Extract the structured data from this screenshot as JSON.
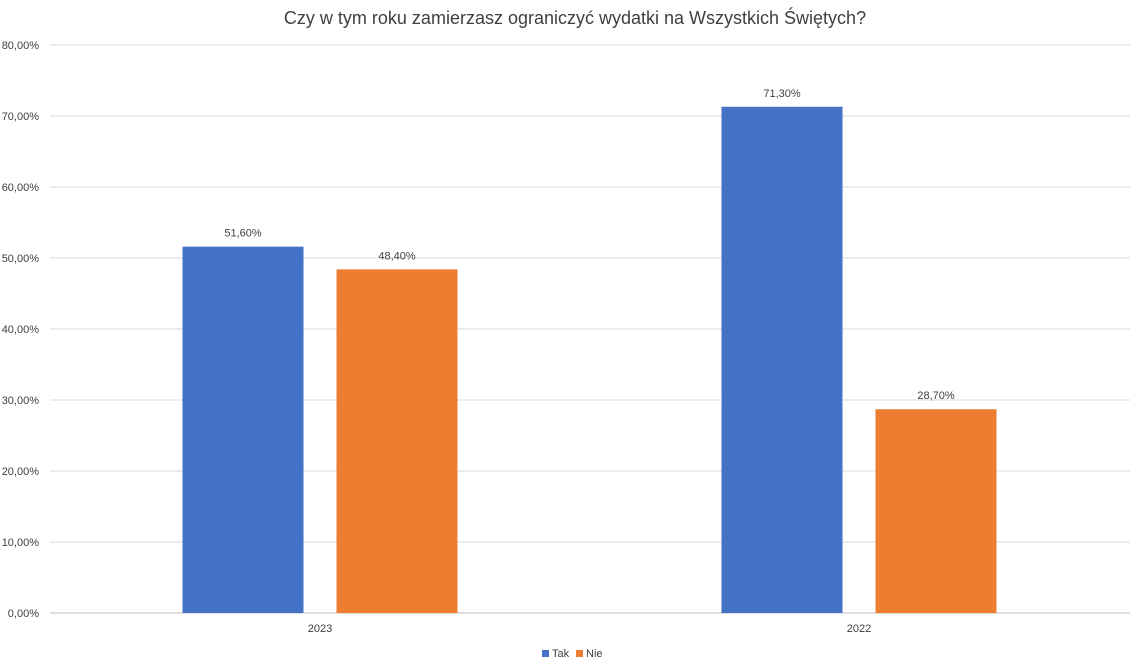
{
  "chart_data": {
    "type": "bar",
    "title": "Czy w tym roku zamierzasz ograniczyć wydatki na Wszystkich Świętych?",
    "categories": [
      "2023",
      "2022"
    ],
    "series": [
      {
        "name": "Tak",
        "color": "#4472C4",
        "values": [
          51.6,
          71.3
        ],
        "labels": [
          "51,60%",
          "71,30%"
        ]
      },
      {
        "name": "Nie",
        "color": "#ED7D31",
        "values": [
          48.4,
          28.7
        ],
        "labels": [
          "48,40%",
          "28,70%"
        ]
      }
    ],
    "ylim": [
      0,
      80
    ],
    "yticks": [
      0,
      10,
      20,
      30,
      40,
      50,
      60,
      70,
      80
    ],
    "ytick_labels": [
      "0,00%",
      "10,00%",
      "20,00%",
      "30,00%",
      "40,00%",
      "50,00%",
      "60,00%",
      "70,00%",
      "80,00%"
    ],
    "grid": true,
    "legend_position": "bottom"
  }
}
